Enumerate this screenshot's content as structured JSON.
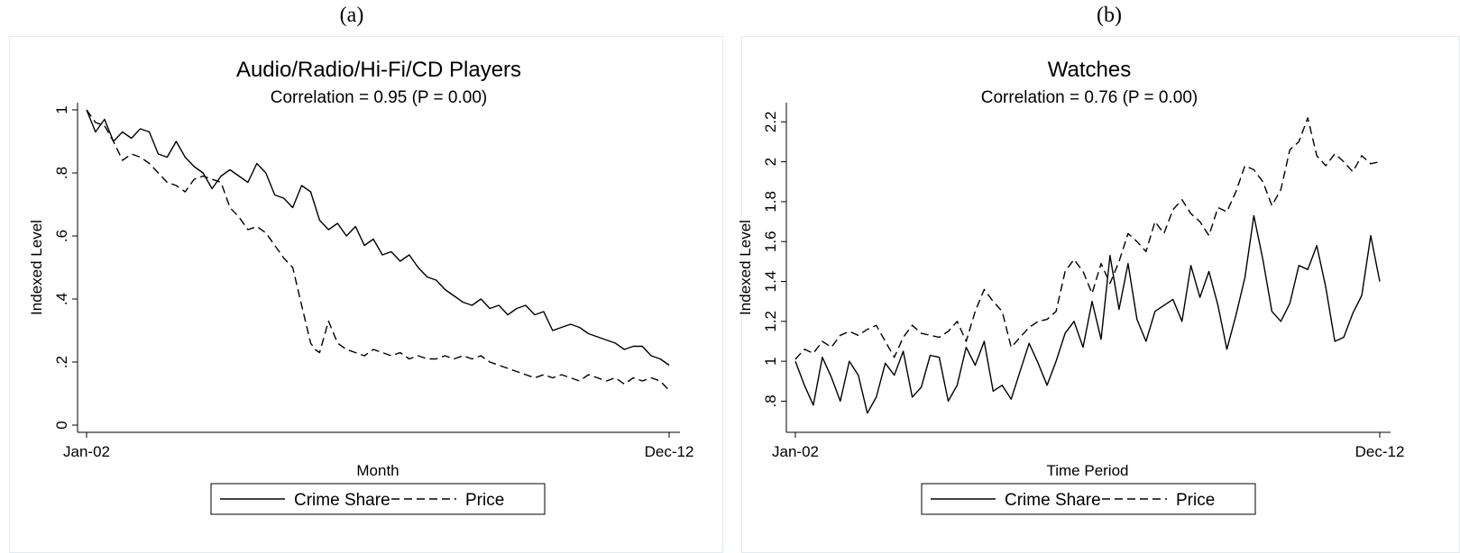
{
  "panels": [
    {
      "letter": "(a)"
    },
    {
      "letter": "(b)"
    }
  ],
  "chart_data": [
    {
      "type": "line",
      "title": "Audio/Radio/Hi-Fi/CD Players",
      "subtitle": "Correlation = 0.95 (P = 0.00)",
      "xlabel": "Month",
      "ylabel": "Indexed Level",
      "x_tick_labels": [
        "Jan-02",
        "Dec-12"
      ],
      "y_ticks": [
        0,
        0.2,
        0.4,
        0.6,
        0.8,
        1
      ],
      "y_tick_labels": [
        "0",
        ".2",
        ".4",
        ".6",
        ".8",
        "1"
      ],
      "ylim": [
        0,
        1
      ],
      "grid": false,
      "legend_position": "bottom",
      "series": [
        {
          "name": "Crime Share",
          "style": "solid",
          "x": [
            0,
            2,
            4,
            6,
            8,
            10,
            12,
            14,
            16,
            18,
            20,
            22,
            24,
            26,
            28,
            30,
            32,
            34,
            36,
            38,
            40,
            42,
            44,
            46,
            48,
            50,
            52,
            54,
            56,
            58,
            60,
            62,
            64,
            66,
            68,
            70,
            72,
            74,
            76,
            78,
            80,
            82,
            84,
            86,
            88,
            90,
            92,
            94,
            96,
            98,
            100,
            102,
            104,
            106,
            108,
            110,
            112,
            114,
            116,
            118,
            120,
            122,
            124,
            126,
            128,
            130
          ],
          "values": [
            1.0,
            0.93,
            0.97,
            0.9,
            0.93,
            0.91,
            0.94,
            0.93,
            0.86,
            0.85,
            0.9,
            0.85,
            0.82,
            0.8,
            0.75,
            0.79,
            0.81,
            0.79,
            0.77,
            0.83,
            0.8,
            0.73,
            0.72,
            0.69,
            0.76,
            0.74,
            0.65,
            0.62,
            0.64,
            0.6,
            0.63,
            0.57,
            0.59,
            0.54,
            0.55,
            0.52,
            0.54,
            0.5,
            0.47,
            0.46,
            0.43,
            0.41,
            0.39,
            0.38,
            0.4,
            0.37,
            0.38,
            0.35,
            0.37,
            0.38,
            0.35,
            0.36,
            0.3,
            0.31,
            0.32,
            0.31,
            0.29,
            0.28,
            0.27,
            0.26,
            0.24,
            0.25,
            0.25,
            0.22,
            0.21,
            0.19
          ]
        },
        {
          "name": "Price",
          "style": "dashed",
          "x": [
            0,
            2,
            4,
            6,
            8,
            10,
            12,
            14,
            16,
            18,
            20,
            22,
            24,
            26,
            28,
            30,
            32,
            34,
            36,
            38,
            40,
            42,
            44,
            46,
            48,
            50,
            51,
            52,
            54,
            56,
            57,
            58,
            60,
            62,
            64,
            66,
            68,
            70,
            72,
            74,
            76,
            78,
            80,
            82,
            84,
            86,
            88,
            90,
            92,
            94,
            96,
            98,
            100,
            102,
            104,
            106,
            108,
            110,
            112,
            114,
            116,
            118,
            120,
            122,
            124,
            126,
            128,
            130
          ],
          "values": [
            1.0,
            0.96,
            0.95,
            0.9,
            0.84,
            0.86,
            0.85,
            0.83,
            0.8,
            0.77,
            0.76,
            0.74,
            0.78,
            0.79,
            0.78,
            0.77,
            0.69,
            0.66,
            0.62,
            0.63,
            0.61,
            0.57,
            0.53,
            0.5,
            0.38,
            0.26,
            0.24,
            0.23,
            0.33,
            0.26,
            0.25,
            0.24,
            0.23,
            0.22,
            0.24,
            0.23,
            0.22,
            0.23,
            0.21,
            0.22,
            0.21,
            0.21,
            0.22,
            0.21,
            0.22,
            0.21,
            0.22,
            0.2,
            0.19,
            0.18,
            0.17,
            0.16,
            0.15,
            0.16,
            0.15,
            0.16,
            0.15,
            0.14,
            0.16,
            0.15,
            0.14,
            0.15,
            0.13,
            0.15,
            0.14,
            0.15,
            0.14,
            0.11
          ]
        }
      ]
    },
    {
      "type": "line",
      "title": "Watches",
      "subtitle": "Correlation = 0.76 (P = 0.00)",
      "xlabel": "Time Period",
      "ylabel": "Indexed Level",
      "x_tick_labels": [
        "Jan-02",
        "Dec-12"
      ],
      "y_ticks": [
        0.8,
        1,
        1.2,
        1.4,
        1.6,
        1.8,
        2,
        2.2
      ],
      "y_tick_labels": [
        ".8",
        "1",
        "1.2",
        "1.4",
        "1.6",
        "1.8",
        "2",
        "2.2"
      ],
      "ylim": [
        0.68,
        2.26
      ],
      "grid": false,
      "legend_position": "bottom",
      "series": [
        {
          "name": "Crime Share",
          "style": "solid",
          "x": [
            0,
            2,
            4,
            6,
            8,
            10,
            12,
            14,
            16,
            18,
            20,
            22,
            24,
            26,
            28,
            30,
            32,
            34,
            36,
            38,
            40,
            42,
            44,
            46,
            48,
            50,
            52,
            54,
            56,
            58,
            60,
            62,
            64,
            66,
            68,
            70,
            72,
            74,
            76,
            78,
            80,
            82,
            84,
            86,
            88,
            90,
            92,
            94,
            96,
            98,
            100,
            102,
            104,
            106,
            108,
            110,
            112,
            114,
            116,
            118,
            120,
            122,
            124,
            126,
            128,
            130
          ],
          "values": [
            1.0,
            0.88,
            0.78,
            1.02,
            0.92,
            0.8,
            1.0,
            0.93,
            0.74,
            0.82,
            0.99,
            0.93,
            1.05,
            0.82,
            0.87,
            1.03,
            1.02,
            0.8,
            0.88,
            1.07,
            0.98,
            1.1,
            0.85,
            0.88,
            0.81,
            0.95,
            1.09,
            0.99,
            0.88,
            1.0,
            1.14,
            1.2,
            1.07,
            1.3,
            1.11,
            1.53,
            1.26,
            1.49,
            1.21,
            1.1,
            1.25,
            1.28,
            1.31,
            1.2,
            1.48,
            1.32,
            1.45,
            1.28,
            1.06,
            1.23,
            1.42,
            1.73,
            1.51,
            1.25,
            1.2,
            1.29,
            1.48,
            1.46,
            1.58,
            1.37,
            1.1,
            1.12,
            1.24,
            1.33,
            1.63,
            1.4
          ]
        },
        {
          "name": "Price",
          "style": "dashed",
          "x": [
            0,
            2,
            4,
            6,
            8,
            10,
            12,
            14,
            16,
            18,
            20,
            22,
            24,
            26,
            28,
            30,
            32,
            34,
            36,
            38,
            40,
            42,
            44,
            46,
            48,
            50,
            52,
            54,
            56,
            58,
            60,
            62,
            64,
            66,
            68,
            70,
            72,
            74,
            76,
            78,
            80,
            82,
            84,
            86,
            88,
            90,
            92,
            94,
            96,
            98,
            100,
            102,
            104,
            106,
            108,
            110,
            112,
            114,
            116,
            118,
            120,
            122,
            124,
            126,
            128,
            130
          ],
          "values": [
            1.01,
            1.06,
            1.04,
            1.1,
            1.07,
            1.13,
            1.15,
            1.13,
            1.16,
            1.18,
            1.1,
            1.02,
            1.12,
            1.18,
            1.14,
            1.13,
            1.12,
            1.15,
            1.2,
            1.1,
            1.25,
            1.36,
            1.3,
            1.25,
            1.07,
            1.12,
            1.17,
            1.2,
            1.21,
            1.25,
            1.45,
            1.51,
            1.45,
            1.34,
            1.49,
            1.39,
            1.5,
            1.64,
            1.6,
            1.55,
            1.7,
            1.64,
            1.76,
            1.81,
            1.74,
            1.7,
            1.63,
            1.77,
            1.75,
            1.85,
            1.98,
            1.96,
            1.9,
            1.78,
            1.86,
            2.06,
            2.1,
            2.22,
            2.03,
            1.98,
            2.04,
            2.0,
            1.95,
            2.03,
            1.99,
            2.0
          ]
        }
      ]
    }
  ]
}
